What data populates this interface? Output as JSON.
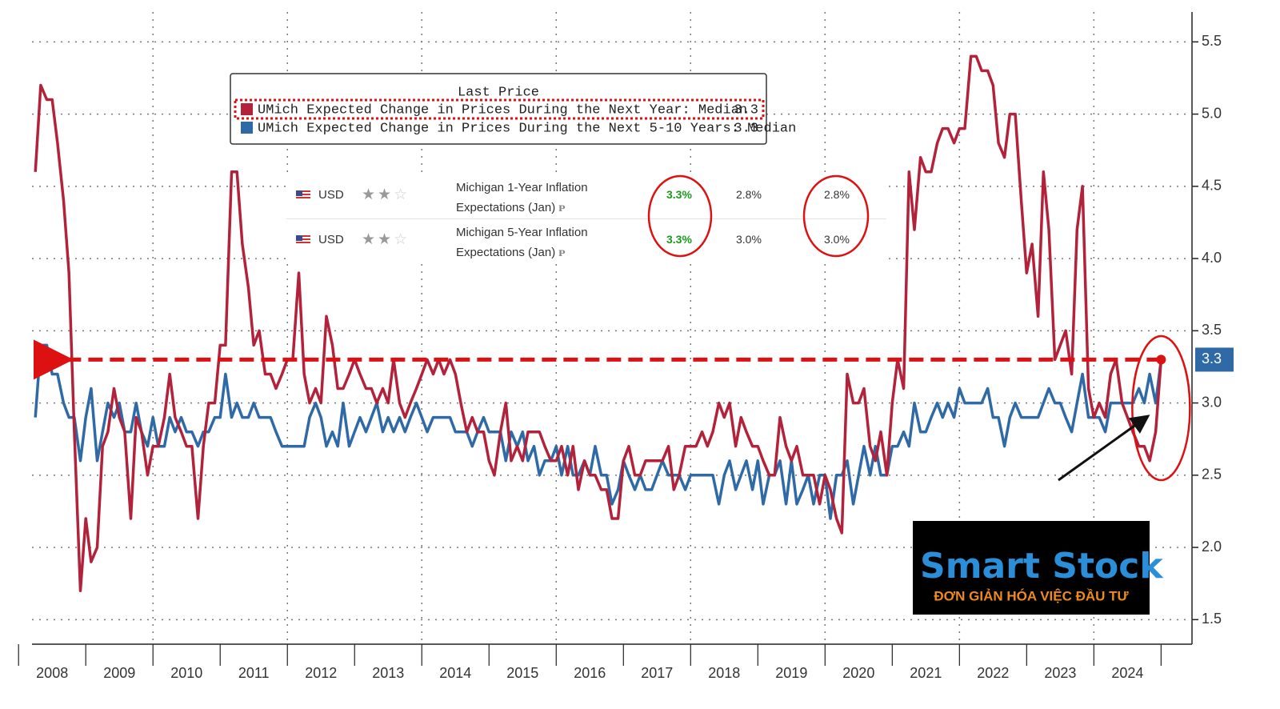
{
  "chart_data": {
    "type": "line",
    "legend_title": "Last Price",
    "x": [
      2008.25,
      2008.33,
      2008.42,
      2008.5,
      2008.58,
      2008.67,
      2008.75,
      2008.83,
      2008.92,
      2009,
      2009.08,
      2009.17,
      2009.25,
      2009.33,
      2009.42,
      2009.5,
      2009.58,
      2009.67,
      2009.75,
      2009.83,
      2009.92,
      2010,
      2010.08,
      2010.17,
      2010.25,
      2010.33,
      2010.42,
      2010.5,
      2010.58,
      2010.67,
      2010.75,
      2010.83,
      2010.92,
      2011,
      2011.08,
      2011.17,
      2011.25,
      2011.33,
      2011.42,
      2011.5,
      2011.58,
      2011.67,
      2011.75,
      2011.83,
      2011.92,
      2012,
      2012.08,
      2012.17,
      2012.25,
      2012.33,
      2012.42,
      2012.5,
      2012.58,
      2012.67,
      2012.75,
      2012.83,
      2012.92,
      2013,
      2013.08,
      2013.17,
      2013.25,
      2013.33,
      2013.42,
      2013.5,
      2013.58,
      2013.67,
      2013.75,
      2013.83,
      2013.92,
      2014,
      2014.08,
      2014.17,
      2014.25,
      2014.33,
      2014.42,
      2014.5,
      2014.58,
      2014.67,
      2014.75,
      2014.83,
      2014.92,
      2015,
      2015.08,
      2015.17,
      2015.25,
      2015.33,
      2015.42,
      2015.5,
      2015.58,
      2015.67,
      2015.75,
      2015.83,
      2015.92,
      2016,
      2016.08,
      2016.17,
      2016.25,
      2016.33,
      2016.42,
      2016.5,
      2016.58,
      2016.67,
      2016.75,
      2016.83,
      2016.92,
      2017,
      2017.08,
      2017.17,
      2017.25,
      2017.33,
      2017.42,
      2017.5,
      2017.58,
      2017.67,
      2017.75,
      2017.83,
      2017.92,
      2018,
      2018.08,
      2018.17,
      2018.25,
      2018.33,
      2018.42,
      2018.5,
      2018.58,
      2018.67,
      2018.75,
      2018.83,
      2018.92,
      2019,
      2019.08,
      2019.17,
      2019.25,
      2019.33,
      2019.42,
      2019.5,
      2019.58,
      2019.67,
      2019.75,
      2019.83,
      2019.92,
      2020,
      2020.08,
      2020.17,
      2020.25,
      2020.33,
      2020.42,
      2020.5,
      2020.58,
      2020.67,
      2020.75,
      2020.83,
      2020.92,
      2021,
      2021.08,
      2021.17,
      2021.25,
      2021.33,
      2021.42,
      2021.5,
      2021.58,
      2021.67,
      2021.75,
      2021.83,
      2021.92,
      2022,
      2022.08,
      2022.17,
      2022.25,
      2022.33,
      2022.42,
      2022.5,
      2022.58,
      2022.67,
      2022.75,
      2022.83,
      2022.92,
      2023,
      2023.08,
      2023.17,
      2023.25,
      2023.33,
      2023.42,
      2023.5,
      2023.58,
      2023.67,
      2023.75,
      2023.83,
      2023.92,
      2024,
      2024.08,
      2024.17,
      2024.25,
      2024.33,
      2024.42,
      2024.5,
      2024.58,
      2024.67,
      2024.75,
      2024.83,
      2024.92,
      2025
    ],
    "series": [
      {
        "name": "UMich Expected Change in Prices During the Next Year: Median",
        "color": "#b3223b",
        "last_price": 3.3,
        "values": [
          4.6,
          5.2,
          5.1,
          5.1,
          4.8,
          4.4,
          3.9,
          2.8,
          1.7,
          2.2,
          1.9,
          2.0,
          2.7,
          2.8,
          3.1,
          2.9,
          2.8,
          2.2,
          2.9,
          2.8,
          2.5,
          2.7,
          2.7,
          2.9,
          3.2,
          2.9,
          2.8,
          2.7,
          2.7,
          2.2,
          2.7,
          3.0,
          3.0,
          3.4,
          3.4,
          4.6,
          4.6,
          4.1,
          3.8,
          3.4,
          3.5,
          3.2,
          3.2,
          3.1,
          3.2,
          3.3,
          3.3,
          3.9,
          3.2,
          3.0,
          3.1,
          3.0,
          3.6,
          3.4,
          3.1,
          3.1,
          3.2,
          3.3,
          3.2,
          3.1,
          3.1,
          3.0,
          3.1,
          3.0,
          3.3,
          3.0,
          2.9,
          3.0,
          3.1,
          3.2,
          3.3,
          3.2,
          3.3,
          3.2,
          3.3,
          3.2,
          3.0,
          2.8,
          2.9,
          2.8,
          2.8,
          2.6,
          2.5,
          2.8,
          3.0,
          2.6,
          2.7,
          2.6,
          2.8,
          2.8,
          2.8,
          2.7,
          2.6,
          2.6,
          2.7,
          2.5,
          2.7,
          2.4,
          2.6,
          2.5,
          2.5,
          2.4,
          2.4,
          2.2,
          2.2,
          2.6,
          2.7,
          2.5,
          2.5,
          2.6,
          2.6,
          2.6,
          2.6,
          2.7,
          2.4,
          2.5,
          2.7,
          2.7,
          2.7,
          2.8,
          2.7,
          2.8,
          3.0,
          2.9,
          3.0,
          2.7,
          2.9,
          2.8,
          2.7,
          2.7,
          2.6,
          2.5,
          2.5,
          2.9,
          2.7,
          2.6,
          2.7,
          2.5,
          2.5,
          2.5,
          2.3,
          2.5,
          2.4,
          2.2,
          2.1,
          3.2,
          3.0,
          3.0,
          3.1,
          2.7,
          2.6,
          2.8,
          2.5,
          3.0,
          3.3,
          3.1,
          4.6,
          4.2,
          4.7,
          4.6,
          4.6,
          4.8,
          4.9,
          4.9,
          4.8,
          4.9,
          4.9,
          5.4,
          5.4,
          5.3,
          5.3,
          5.2,
          4.8,
          4.7,
          5.0,
          5.0,
          4.4,
          3.9,
          4.1,
          3.6,
          4.6,
          4.2,
          3.3,
          3.4,
          3.5,
          3.2,
          4.2,
          4.5,
          3.1,
          2.9,
          3.0,
          2.9,
          3.2,
          3.3,
          3.0,
          2.9,
          2.8,
          2.7,
          2.7,
          2.6,
          2.8,
          3.3
        ]
      },
      {
        "name": "UMich Expected Change in Prices During the Next 5-10 Years: Median",
        "color": "#2f6aa6",
        "last_price": 3.3,
        "values": [
          2.9,
          3.4,
          3.4,
          3.2,
          3.2,
          3.0,
          2.9,
          2.9,
          2.6,
          2.9,
          3.1,
          2.6,
          2.8,
          3.0,
          2.9,
          3.0,
          2.8,
          2.8,
          3.0,
          2.8,
          2.7,
          2.9,
          2.7,
          2.7,
          2.9,
          2.8,
          2.9,
          2.8,
          2.8,
          2.7,
          2.8,
          2.8,
          2.9,
          2.9,
          3.2,
          2.9,
          3.0,
          2.9,
          2.9,
          3.0,
          2.9,
          2.9,
          2.9,
          2.8,
          2.7,
          2.7,
          2.7,
          2.7,
          2.7,
          2.9,
          3.0,
          2.9,
          2.7,
          2.8,
          2.7,
          3.0,
          2.7,
          2.8,
          2.9,
          2.8,
          2.9,
          3.0,
          2.8,
          2.9,
          2.8,
          2.9,
          2.8,
          2.9,
          3.0,
          2.9,
          2.8,
          2.9,
          2.9,
          2.9,
          2.9,
          2.8,
          2.8,
          2.8,
          2.7,
          2.8,
          2.9,
          2.8,
          2.8,
          2.8,
          2.6,
          2.8,
          2.7,
          2.8,
          2.6,
          2.7,
          2.5,
          2.6,
          2.6,
          2.7,
          2.5,
          2.7,
          2.5,
          2.5,
          2.6,
          2.5,
          2.7,
          2.5,
          2.5,
          2.3,
          2.4,
          2.6,
          2.5,
          2.4,
          2.5,
          2.4,
          2.4,
          2.5,
          2.6,
          2.5,
          2.5,
          2.5,
          2.4,
          2.5,
          2.5,
          2.5,
          2.5,
          2.5,
          2.3,
          2.5,
          2.6,
          2.4,
          2.5,
          2.6,
          2.4,
          2.6,
          2.3,
          2.5,
          2.5,
          2.6,
          2.3,
          2.6,
          2.3,
          2.4,
          2.5,
          2.3,
          2.5,
          2.5,
          2.2,
          2.5,
          2.5,
          2.6,
          2.3,
          2.5,
          2.7,
          2.5,
          2.7,
          2.5,
          2.5,
          2.7,
          2.7,
          2.8,
          2.7,
          3.0,
          2.8,
          2.8,
          2.9,
          3.0,
          2.9,
          3.0,
          2.9,
          3.1,
          3.0,
          3.0,
          3.0,
          3.0,
          3.1,
          2.9,
          2.9,
          2.7,
          2.9,
          3.0,
          2.9,
          2.9,
          2.9,
          2.9,
          3.0,
          3.1,
          3.0,
          3.0,
          2.9,
          2.8,
          3.0,
          3.2,
          2.9,
          2.9,
          2.9,
          2.8,
          3.0,
          3.0,
          3.0,
          3.0,
          3.0,
          3.1,
          3.0,
          3.2,
          3.0,
          3.3
        ]
      }
    ],
    "xlim": [
      2008.2,
      2025.46
    ],
    "xticks": [
      {
        "value": 2008.5,
        "label": "2008"
      },
      {
        "value": 2009.5,
        "label": "2009"
      },
      {
        "value": 2010.5,
        "label": "2010"
      },
      {
        "value": 2011.5,
        "label": "2011"
      },
      {
        "value": 2012.5,
        "label": "2012"
      },
      {
        "value": 2013.5,
        "label": "2013"
      },
      {
        "value": 2014.5,
        "label": "2014"
      },
      {
        "value": 2015.5,
        "label": "2015"
      },
      {
        "value": 2016.5,
        "label": "2016"
      },
      {
        "value": 2017.5,
        "label": "2017"
      },
      {
        "value": 2018.5,
        "label": "2018"
      },
      {
        "value": 2019.5,
        "label": "2019"
      },
      {
        "value": 2020.5,
        "label": "2020"
      },
      {
        "value": 2021.5,
        "label": "2021"
      },
      {
        "value": 2022.5,
        "label": "2022"
      },
      {
        "value": 2023.5,
        "label": "2023"
      },
      {
        "value": 2024.5,
        "label": "2024"
      }
    ],
    "ylim": [
      1.33,
      5.79
    ],
    "yticks": [
      1.5,
      {
        "value": 2,
        "label": "2.0"
      },
      2.5,
      {
        "value": 3,
        "label": "3.0"
      },
      3.5,
      {
        "value": 4,
        "label": "4.0"
      },
      4.5,
      {
        "value": 5,
        "label": "5.0"
      },
      5.5
    ],
    "grid": true
  },
  "calendar": {
    "rows": [
      {
        "currency": "USD",
        "event": "Michigan 1-Year Inflation Expectations (Jan)",
        "actual": "3.3%",
        "forecast": "2.8%",
        "previous": "2.8%"
      },
      {
        "currency": "USD",
        "event": "Michigan 5-Year Inflation Expectations (Jan)",
        "actual": "3.3%",
        "forecast": "3.0%",
        "previous": "3.0%"
      }
    ]
  },
  "logo": {
    "name": "Smart Stock",
    "tagline": "ĐƠN GIẢN HÓA VIỆC ĐẦU TƯ"
  }
}
